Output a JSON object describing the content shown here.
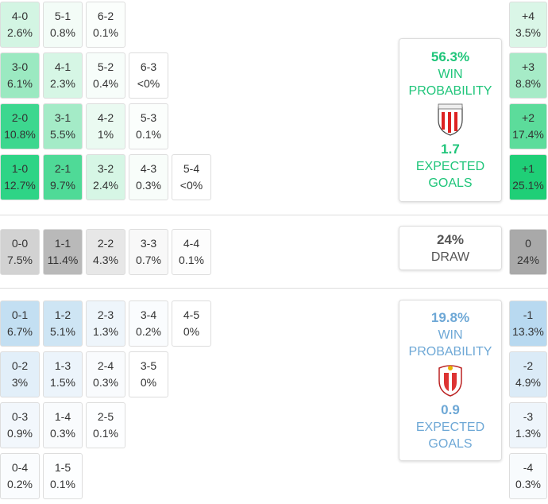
{
  "home": {
    "rows": [
      {
        "cells": [
          {
            "score": "4-0",
            "prob": "2.6%",
            "color": "#d3f5e3"
          },
          {
            "score": "5-1",
            "prob": "0.8%",
            "color": "#f3fcf7"
          },
          {
            "score": "6-2",
            "prob": "0.1%",
            "color": "#fbfefc"
          }
        ],
        "margin": {
          "label": "+4",
          "prob": "3.5%",
          "color": "#daf6e7"
        }
      },
      {
        "cells": [
          {
            "score": "3-0",
            "prob": "6.1%",
            "color": "#9be9c1"
          },
          {
            "score": "4-1",
            "prob": "2.3%",
            "color": "#d6f6e5"
          },
          {
            "score": "5-2",
            "prob": "0.4%",
            "color": "#f7fdfa"
          },
          {
            "score": "6-3",
            "prob": "<0%",
            "color": "#ffffff"
          }
        ],
        "margin": {
          "label": "+3",
          "prob": "8.8%",
          "color": "#a6ebc7"
        }
      },
      {
        "cells": [
          {
            "score": "2-0",
            "prob": "10.8%",
            "color": "#3dd78f"
          },
          {
            "score": "3-1",
            "prob": "5.5%",
            "color": "#a4ebc7"
          },
          {
            "score": "4-2",
            "prob": "1%",
            "color": "#eafaf1"
          },
          {
            "score": "5-3",
            "prob": "0.1%",
            "color": "#fbfefc"
          }
        ],
        "margin": {
          "label": "+2",
          "prob": "17.4%",
          "color": "#5cdc9b"
        }
      },
      {
        "cells": [
          {
            "score": "1-0",
            "prob": "12.7%",
            "color": "#2ed486"
          },
          {
            "score": "2-1",
            "prob": "9.7%",
            "color": "#4fda97"
          },
          {
            "score": "3-2",
            "prob": "2.4%",
            "color": "#d6f6e5"
          },
          {
            "score": "4-3",
            "prob": "0.3%",
            "color": "#f8fdfa"
          },
          {
            "score": "5-4",
            "prob": "<0%",
            "color": "#ffffff"
          }
        ],
        "margin": {
          "label": "+1",
          "prob": "25.1%",
          "color": "#1fcf77"
        }
      }
    ],
    "card": {
      "pct": "56.3%",
      "label": "WIN PROBABILITY",
      "xg": "1.7",
      "xg_label": "EXPECTED GOALS",
      "color": "#1fc57a"
    }
  },
  "draw": {
    "rows": [
      {
        "cells": [
          {
            "score": "0-0",
            "prob": "7.5%",
            "color": "#d2d2d2"
          },
          {
            "score": "1-1",
            "prob": "11.4%",
            "color": "#b9b9b9"
          },
          {
            "score": "2-2",
            "prob": "4.3%",
            "color": "#e7e7e7"
          },
          {
            "score": "3-3",
            "prob": "0.7%",
            "color": "#f8f8f8"
          },
          {
            "score": "4-4",
            "prob": "0.1%",
            "color": "#fdfdfd"
          }
        ],
        "margin": {
          "label": "0",
          "prob": "24%",
          "color": "#a9a9a9"
        }
      }
    ],
    "card": {
      "pct": "24%",
      "label": "DRAW",
      "color": "#555555"
    }
  },
  "away": {
    "rows": [
      {
        "cells": [
          {
            "score": "0-1",
            "prob": "6.7%",
            "color": "#c3dff2"
          },
          {
            "score": "1-2",
            "prob": "5.1%",
            "color": "#cee5f4"
          },
          {
            "score": "2-3",
            "prob": "1.3%",
            "color": "#eef5fb"
          },
          {
            "score": "3-4",
            "prob": "0.2%",
            "color": "#fafcfe"
          },
          {
            "score": "4-5",
            "prob": "0%",
            "color": "#ffffff"
          }
        ],
        "margin": {
          "label": "-1",
          "prob": "13.3%",
          "color": "#b8d9f0"
        }
      },
      {
        "cells": [
          {
            "score": "0-2",
            "prob": "3%",
            "color": "#e2eff9"
          },
          {
            "score": "1-3",
            "prob": "1.5%",
            "color": "#ecf4fb"
          },
          {
            "score": "2-4",
            "prob": "0.3%",
            "color": "#f9fbfd"
          },
          {
            "score": "3-5",
            "prob": "0%",
            "color": "#ffffff"
          }
        ],
        "margin": {
          "label": "-2",
          "prob": "4.9%",
          "color": "#dbebf7"
        }
      },
      {
        "cells": [
          {
            "score": "0-3",
            "prob": "0.9%",
            "color": "#f2f7fc"
          },
          {
            "score": "1-4",
            "prob": "0.3%",
            "color": "#f9fbfd"
          },
          {
            "score": "2-5",
            "prob": "0.1%",
            "color": "#fdfeff"
          }
        ],
        "margin": {
          "label": "-3",
          "prob": "1.3%",
          "color": "#eef5fb"
        }
      },
      {
        "cells": [
          {
            "score": "0-4",
            "prob": "0.2%",
            "color": "#fafcfe"
          },
          {
            "score": "1-5",
            "prob": "0.1%",
            "color": "#fdfeff"
          }
        ],
        "margin": {
          "label": "-4",
          "prob": "0.3%",
          "color": "#f8fbfd"
        }
      }
    ],
    "card": {
      "pct": "19.8%",
      "label": "WIN PROBABILITY",
      "xg": "0.9",
      "xg_label": "EXPECTED GOALS",
      "color": "#6ea8d6"
    }
  }
}
